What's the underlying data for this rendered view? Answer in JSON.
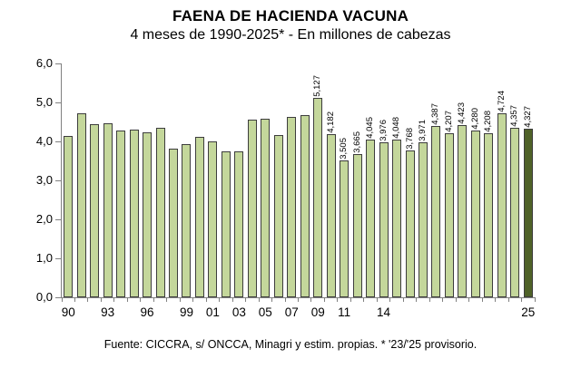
{
  "chart_data": {
    "type": "bar",
    "title": "FAENA DE HACIENDA VACUNA",
    "subtitle": "4 meses de 1990-2025* - En millones de cabezas",
    "source": "Fuente: CICCRA, s/ ONCCA, Minagri y estim. propias. * '23/'25 provisorio.",
    "ylabel": "",
    "xlabel": "",
    "ylim": [
      0,
      6
    ],
    "grid": false,
    "legend": false,
    "y_tick_labels": [
      "6,0",
      "5,0",
      "4,0",
      "3,0",
      "2,0",
      "1,0",
      "0,0"
    ],
    "years": [
      1990,
      1991,
      1992,
      1993,
      1994,
      1995,
      1996,
      1997,
      1998,
      1999,
      2000,
      2001,
      2002,
      2003,
      2004,
      2005,
      2006,
      2007,
      2008,
      2009,
      2010,
      2011,
      2012,
      2013,
      2014,
      2015,
      2016,
      2017,
      2018,
      2019,
      2020,
      2021,
      2022,
      2023,
      2024,
      2025
    ],
    "values": [
      4.15,
      4.72,
      4.45,
      4.47,
      4.27,
      4.3,
      4.24,
      4.36,
      3.81,
      3.93,
      4.12,
      3.99,
      3.75,
      3.75,
      4.56,
      4.58,
      4.16,
      4.62,
      4.67,
      5.127,
      4.182,
      3.505,
      3.665,
      4.045,
      3.976,
      4.048,
      3.768,
      3.971,
      4.387,
      4.207,
      4.423,
      4.28,
      4.208,
      4.724,
      4.357,
      4.327
    ],
    "bar_labels": [
      null,
      null,
      null,
      null,
      null,
      null,
      null,
      null,
      null,
      null,
      null,
      null,
      null,
      null,
      null,
      null,
      null,
      null,
      null,
      "5,127",
      "4,182",
      "3,505",
      "3,665",
      "4,045",
      "3,976",
      "4,048",
      "3,768",
      "3,971",
      "4,387",
      "4,207",
      "4,423",
      "4,280",
      "4,208",
      "4,724",
      "4,357",
      "4,327"
    ],
    "x_tick_labels": [
      {
        "index": 0,
        "label": "90"
      },
      {
        "index": 3,
        "label": "93"
      },
      {
        "index": 6,
        "label": "96"
      },
      {
        "index": 9,
        "label": "99"
      },
      {
        "index": 11,
        "label": "01"
      },
      {
        "index": 13,
        "label": "03"
      },
      {
        "index": 15,
        "label": "05"
      },
      {
        "index": 17,
        "label": "07"
      },
      {
        "index": 19,
        "label": "09"
      },
      {
        "index": 21,
        "label": "11"
      },
      {
        "index": 24,
        "label": "14"
      },
      {
        "index": 35,
        "label": "25"
      }
    ],
    "highlight_last": true,
    "colors": {
      "bar_fill": "#c4d79b",
      "bar_border": "#3d3d3d",
      "highlight_fill": "#4f6228",
      "axis": "#808080",
      "text": "#000000"
    }
  }
}
